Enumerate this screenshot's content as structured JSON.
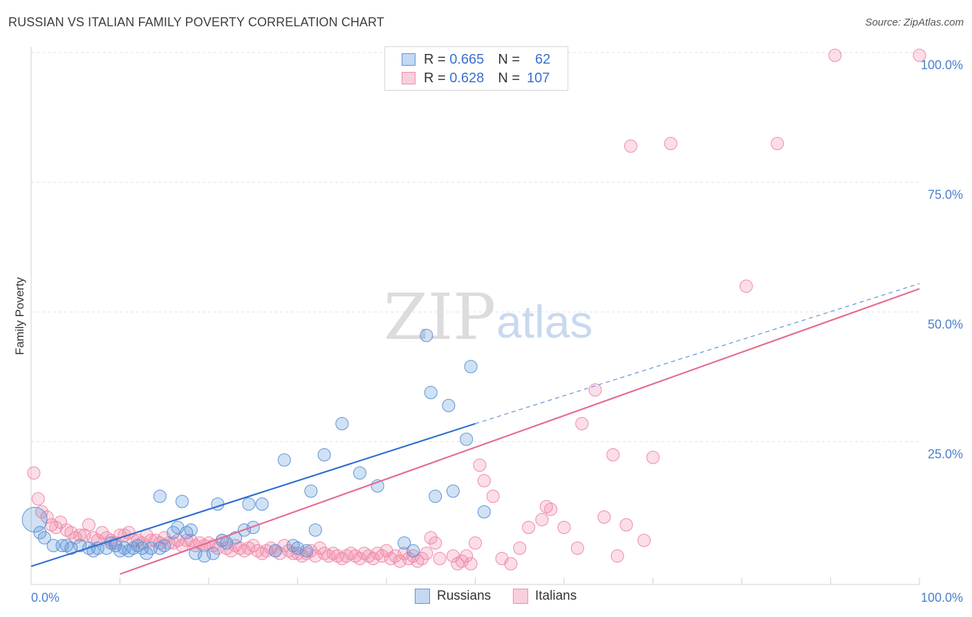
{
  "title": "RUSSIAN VS ITALIAN FAMILY POVERTY CORRELATION CHART",
  "source": "Source: ZipAtlas.com",
  "watermark": {
    "zip": "ZIP",
    "atlas": "atlas"
  },
  "legend": {
    "rows": [
      {
        "r_label": "R =",
        "r_value": "0.665",
        "n_label": "N =",
        "n_value": "62",
        "color": "#5b93d8"
      },
      {
        "r_label": "R =",
        "r_value": "0.628",
        "n_label": "N =",
        "n_value": "107",
        "color": "#ef89a8"
      }
    ]
  },
  "bottom_legend": {
    "russians": "Russians",
    "italians": "Italians"
  },
  "chart_data": {
    "type": "scatter",
    "title": "RUSSIAN VS ITALIAN FAMILY POVERTY CORRELATION CHART",
    "xlabel": "",
    "ylabel": "Family Poverty",
    "xlim": [
      0,
      100
    ],
    "ylim": [
      0,
      100
    ],
    "x_tick_labels": [
      "0.0%",
      "100.0%"
    ],
    "y_tick_labels": [
      "100.0%",
      "75.0%",
      "50.0%",
      "25.0%"
    ],
    "y_ticks": [
      100,
      75,
      50,
      25
    ],
    "grid": true,
    "series": [
      {
        "name": "Russians",
        "color": "#5b93d8",
        "trend": {
          "x0": 0,
          "y0": 1.5,
          "x1": 50,
          "y1": 29,
          "dash_to": 100,
          "dash_y": 56
        },
        "points": [
          [
            0.4,
            10.5
          ],
          [
            1.0,
            8.0
          ],
          [
            1.5,
            7.0
          ],
          [
            2.5,
            5.5
          ],
          [
            3.5,
            5.5
          ],
          [
            4.0,
            5.5
          ],
          [
            4.5,
            5.0
          ],
          [
            5.5,
            5.5
          ],
          [
            6.5,
            5.0
          ],
          [
            7.0,
            4.5
          ],
          [
            7.5,
            5.0
          ],
          [
            8.5,
            5.0
          ],
          [
            9.0,
            6.0
          ],
          [
            9.5,
            5.5
          ],
          [
            10.0,
            4.5
          ],
          [
            11.0,
            4.5
          ],
          [
            12.0,
            5.5
          ],
          [
            13.0,
            4.0
          ],
          [
            10.5,
            5.0
          ],
          [
            11.5,
            5.0
          ],
          [
            13.5,
            5.0
          ],
          [
            14.5,
            5.0
          ],
          [
            15.0,
            5.5
          ],
          [
            16.0,
            8.0
          ],
          [
            16.5,
            9.0
          ],
          [
            17.5,
            8.0
          ],
          [
            18.5,
            4.0
          ],
          [
            19.5,
            3.5
          ],
          [
            20.5,
            4.0
          ],
          [
            21.5,
            6.5
          ],
          [
            22.0,
            6.0
          ],
          [
            23.0,
            7.0
          ],
          [
            24.0,
            8.5
          ],
          [
            25.0,
            9.0
          ],
          [
            24.5,
            13.5
          ],
          [
            26.0,
            13.5
          ],
          [
            21.0,
            13.5
          ],
          [
            17.0,
            14.0
          ],
          [
            14.5,
            15.0
          ],
          [
            30.0,
            5.0
          ],
          [
            31.0,
            4.5
          ],
          [
            29.5,
            5.5
          ],
          [
            27.5,
            4.5
          ],
          [
            32.0,
            8.5
          ],
          [
            31.5,
            16.0
          ],
          [
            28.5,
            22.0
          ],
          [
            33.0,
            23.0
          ],
          [
            35.0,
            29.0
          ],
          [
            37.0,
            19.5
          ],
          [
            39.0,
            17.0
          ],
          [
            42.0,
            6.0
          ],
          [
            43.0,
            4.5
          ],
          [
            44.5,
            46.0
          ],
          [
            45.0,
            35.0
          ],
          [
            47.0,
            32.5
          ],
          [
            47.5,
            16.0
          ],
          [
            49.0,
            26.0
          ],
          [
            49.5,
            40.0
          ],
          [
            51.0,
            12.0
          ],
          [
            45.5,
            15.0
          ],
          [
            18.0,
            8.5
          ],
          [
            12.5,
            5.0
          ]
        ]
      },
      {
        "name": "Italians",
        "color": "#ef89a8",
        "trend": {
          "x0": 10,
          "y0": 0,
          "x1": 100,
          "y1": 55
        },
        "points": [
          [
            0.3,
            19.5
          ],
          [
            0.8,
            14.5
          ],
          [
            1.2,
            12.0
          ],
          [
            1.8,
            11.0
          ],
          [
            2.3,
            9.5
          ],
          [
            2.8,
            9.0
          ],
          [
            3.3,
            10.0
          ],
          [
            4.0,
            8.5
          ],
          [
            4.5,
            8.0
          ],
          [
            5.0,
            7.0
          ],
          [
            5.5,
            7.5
          ],
          [
            6.0,
            7.5
          ],
          [
            6.5,
            9.5
          ],
          [
            7.0,
            7.0
          ],
          [
            7.5,
            6.5
          ],
          [
            8.0,
            8.0
          ],
          [
            8.5,
            7.0
          ],
          [
            9.0,
            6.5
          ],
          [
            9.5,
            6.0
          ],
          [
            10.0,
            7.5
          ],
          [
            10.5,
            7.5
          ],
          [
            11.0,
            8.0
          ],
          [
            11.5,
            6.5
          ],
          [
            12.0,
            6.5
          ],
          [
            12.5,
            6.0
          ],
          [
            13.0,
            7.5
          ],
          [
            13.5,
            6.5
          ],
          [
            14.0,
            6.5
          ],
          [
            14.5,
            6.0
          ],
          [
            15.0,
            7.0
          ],
          [
            15.5,
            6.0
          ],
          [
            16.0,
            6.0
          ],
          [
            16.5,
            6.5
          ],
          [
            17.0,
            5.5
          ],
          [
            17.5,
            6.5
          ],
          [
            18.0,
            6.5
          ],
          [
            18.5,
            5.5
          ],
          [
            19.0,
            6.0
          ],
          [
            19.5,
            5.5
          ],
          [
            20.0,
            6.0
          ],
          [
            20.5,
            5.5
          ],
          [
            21.0,
            5.0
          ],
          [
            21.5,
            6.5
          ],
          [
            22.0,
            5.0
          ],
          [
            22.5,
            4.5
          ],
          [
            23.0,
            5.5
          ],
          [
            23.5,
            5.0
          ],
          [
            24.0,
            4.5
          ],
          [
            24.5,
            5.0
          ],
          [
            25.0,
            5.5
          ],
          [
            25.5,
            4.5
          ],
          [
            26.0,
            4.0
          ],
          [
            26.5,
            4.5
          ],
          [
            27.0,
            5.0
          ],
          [
            27.5,
            4.5
          ],
          [
            28.0,
            4.0
          ],
          [
            28.5,
            5.5
          ],
          [
            29.0,
            4.5
          ],
          [
            29.5,
            4.0
          ],
          [
            30.0,
            4.0
          ],
          [
            30.5,
            3.5
          ],
          [
            31.0,
            4.0
          ],
          [
            31.5,
            4.5
          ],
          [
            32.0,
            3.5
          ],
          [
            32.5,
            5.0
          ],
          [
            33.0,
            4.0
          ],
          [
            33.5,
            3.5
          ],
          [
            34.0,
            4.0
          ],
          [
            34.5,
            3.5
          ],
          [
            35.0,
            3.0
          ],
          [
            35.5,
            3.5
          ],
          [
            36.0,
            4.0
          ],
          [
            36.5,
            3.5
          ],
          [
            37.0,
            3.0
          ],
          [
            37.5,
            4.0
          ],
          [
            38.0,
            3.5
          ],
          [
            38.5,
            3.0
          ],
          [
            39.0,
            4.0
          ],
          [
            39.5,
            3.5
          ],
          [
            40.0,
            4.5
          ],
          [
            40.5,
            3.0
          ],
          [
            41.0,
            3.5
          ],
          [
            41.5,
            2.5
          ],
          [
            42.0,
            4.0
          ],
          [
            42.5,
            3.0
          ],
          [
            43.0,
            3.5
          ],
          [
            43.5,
            2.5
          ],
          [
            44.0,
            3.0
          ],
          [
            44.5,
            4.0
          ],
          [
            45.0,
            7.0
          ],
          [
            45.5,
            6.0
          ],
          [
            46.0,
            3.0
          ],
          [
            47.5,
            3.5
          ],
          [
            48.0,
            2.0
          ],
          [
            48.5,
            2.5
          ],
          [
            49.0,
            3.5
          ],
          [
            49.5,
            2.0
          ],
          [
            50.0,
            6.0
          ],
          [
            50.5,
            21.0
          ],
          [
            51.0,
            18.0
          ],
          [
            52.0,
            15.0
          ],
          [
            53.0,
            3.0
          ],
          [
            54.0,
            2.0
          ],
          [
            55.0,
            5.0
          ],
          [
            56.0,
            9.0
          ],
          [
            57.5,
            10.5
          ],
          [
            58.0,
            13.0
          ]
        ],
        "extra_points": [
          [
            58.5,
            12.5
          ],
          [
            60.0,
            9.0
          ],
          [
            61.5,
            5.0
          ],
          [
            62.0,
            29.0
          ],
          [
            63.5,
            35.5
          ],
          [
            64.5,
            11.0
          ],
          [
            65.5,
            23.0
          ],
          [
            66.0,
            3.5
          ],
          [
            67.0,
            9.5
          ],
          [
            67.5,
            82.5
          ],
          [
            69.0,
            6.5
          ],
          [
            70.0,
            22.5
          ],
          [
            72.0,
            83.0
          ],
          [
            80.5,
            55.5
          ],
          [
            84.0,
            83.0
          ],
          [
            90.5,
            100.0
          ],
          [
            100.0,
            100.0
          ]
        ]
      }
    ]
  }
}
